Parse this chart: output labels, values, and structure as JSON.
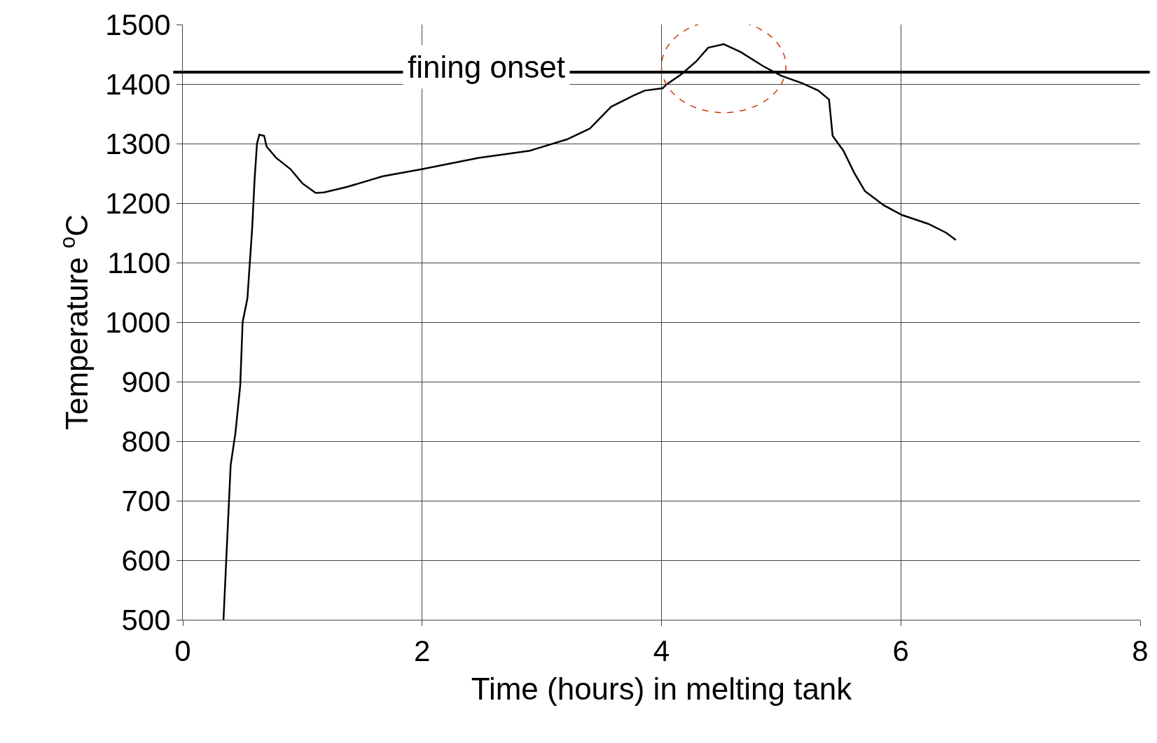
{
  "chart_data": {
    "type": "line",
    "xlabel": "Time (hours) in melting tank",
    "ylabel": "Temperature $^{o}$C",
    "xlim": [
      0,
      8
    ],
    "xticks": [
      0,
      2,
      4,
      6,
      8
    ],
    "ylim": [
      500,
      1500
    ],
    "yticks": [
      500,
      600,
      700,
      800,
      900,
      1000,
      1100,
      1200,
      1300,
      1400,
      1500
    ],
    "grid": true,
    "legend": false,
    "marker": "none",
    "line_style": "solid",
    "ref_lines": [
      {
        "axis": "y",
        "value": 1420,
        "label": "fining onset",
        "color": "#000000"
      }
    ],
    "series": [
      {
        "color": "#000000",
        "x": [
          0.34,
          0.4,
          0.44,
          0.48,
          0.5,
          0.54,
          0.58,
          0.6,
          0.62,
          0.64,
          0.68,
          0.7,
          0.78,
          0.9,
          1.0,
          1.11,
          1.18,
          1.37,
          1.67,
          2.0,
          2.47,
          2.9,
          3.21,
          3.4,
          3.58,
          3.77,
          3.86,
          4.01,
          4.04,
          4.17,
          4.29,
          4.39,
          4.52,
          4.66,
          4.85,
          5.0,
          5.18,
          5.31,
          5.4,
          5.43,
          5.52,
          5.61,
          5.7,
          5.86,
          6.01,
          6.23,
          6.38,
          6.46
        ],
        "values": [
          500,
          760,
          814,
          894,
          1000,
          1040,
          1159,
          1240,
          1300,
          1315,
          1313,
          1295,
          1276,
          1257,
          1233,
          1217,
          1218,
          1227,
          1245,
          1257,
          1276,
          1288,
          1307,
          1325,
          1362,
          1381,
          1389,
          1393,
          1399,
          1417,
          1438,
          1461,
          1467,
          1454,
          1430,
          1414,
          1401,
          1389,
          1374,
          1313,
          1288,
          1251,
          1220,
          1196,
          1180,
          1165,
          1150,
          1138
        ]
      }
    ]
  }
}
